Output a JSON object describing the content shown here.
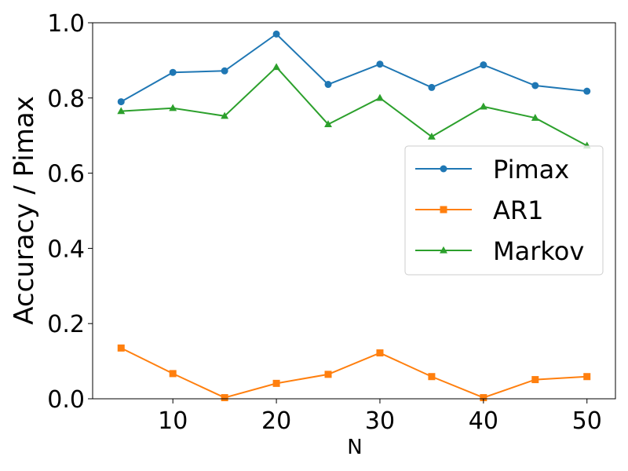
{
  "chart_data": {
    "type": "line",
    "xlabel": "N",
    "ylabel": "Accuracy / Pimax",
    "xlim": [
      2.25,
      52.75
    ],
    "ylim": [
      0.0,
      1.0
    ],
    "xticks": [
      10,
      20,
      30,
      40,
      50
    ],
    "yticks": [
      0.0,
      0.2,
      0.4,
      0.6,
      0.8,
      1.0
    ],
    "xtick_labels": [
      "10",
      "20",
      "30",
      "40",
      "50"
    ],
    "ytick_labels": [
      "0.0",
      "0.2",
      "0.4",
      "0.6",
      "0.8",
      "1.0"
    ],
    "grid": false,
    "legend_position": "center-right",
    "x": [
      5,
      10,
      15,
      20,
      25,
      30,
      35,
      40,
      45,
      50
    ],
    "series": [
      {
        "name": "Pimax",
        "color": "#1f77b4",
        "marker": "circle",
        "values": [
          0.79,
          0.868,
          0.872,
          0.97,
          0.836,
          0.89,
          0.828,
          0.888,
          0.833,
          0.818
        ]
      },
      {
        "name": "AR1",
        "color": "#ff7f0e",
        "marker": "square",
        "values": [
          0.135,
          0.067,
          0.003,
          0.041,
          0.065,
          0.122,
          0.059,
          0.003,
          0.051,
          0.059
        ]
      },
      {
        "name": "Markov",
        "color": "#2ca02c",
        "marker": "triangle",
        "values": [
          0.765,
          0.773,
          0.752,
          0.882,
          0.73,
          0.8,
          0.697,
          0.777,
          0.747,
          0.673
        ]
      }
    ]
  }
}
